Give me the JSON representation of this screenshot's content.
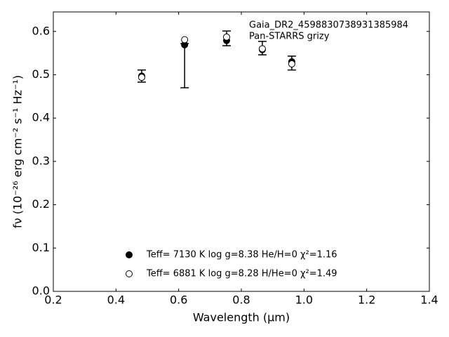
{
  "chart_data": {
    "type": "scatter",
    "annotations": [
      "Gaia_DR2_4598830738931385984",
      "Pan-STARRS grizy"
    ],
    "xlabel": "Wavelength (μm)",
    "ylabel": "fν (10⁻²⁶ erg cm⁻² s⁻¹ Hz⁻¹)",
    "xlim": [
      0.2,
      1.4
    ],
    "ylim": [
      0,
      0.645
    ],
    "xticks": [
      0.2,
      0.4,
      0.6,
      0.8,
      {
        "value": 1.0,
        "label": "1.0"
      },
      1.2,
      1.4
    ],
    "yticks": [
      {
        "value": 0,
        "label": "0.0"
      },
      0.1,
      0.2,
      0.3,
      0.4,
      0.5,
      0.6
    ],
    "series": [
      {
        "name": "Teff=  7130 K  log g=8.38  He/H=0  χ²=1.16",
        "color": "#000000",
        "marker": "filled",
        "x": [
          0.482,
          0.619,
          0.753,
          0.867,
          0.961
        ],
        "values": [
          0.497,
          0.569,
          0.579,
          0.558,
          0.53
        ],
        "err_lower": [
          0.014,
          0.099,
          0.012,
          0.012,
          0.019
        ],
        "err_upper": [
          0.014,
          0.003,
          0.022,
          0.019,
          0.013
        ]
      },
      {
        "name": "Teff=  6881 K  log g=8.28  H/He=0  χ²=1.49",
        "color": "#000000",
        "marker": "open",
        "x": [
          0.482,
          0.619,
          0.753,
          0.867,
          0.961
        ],
        "values": [
          0.494,
          0.581,
          0.587,
          0.56,
          0.525
        ]
      }
    ]
  }
}
